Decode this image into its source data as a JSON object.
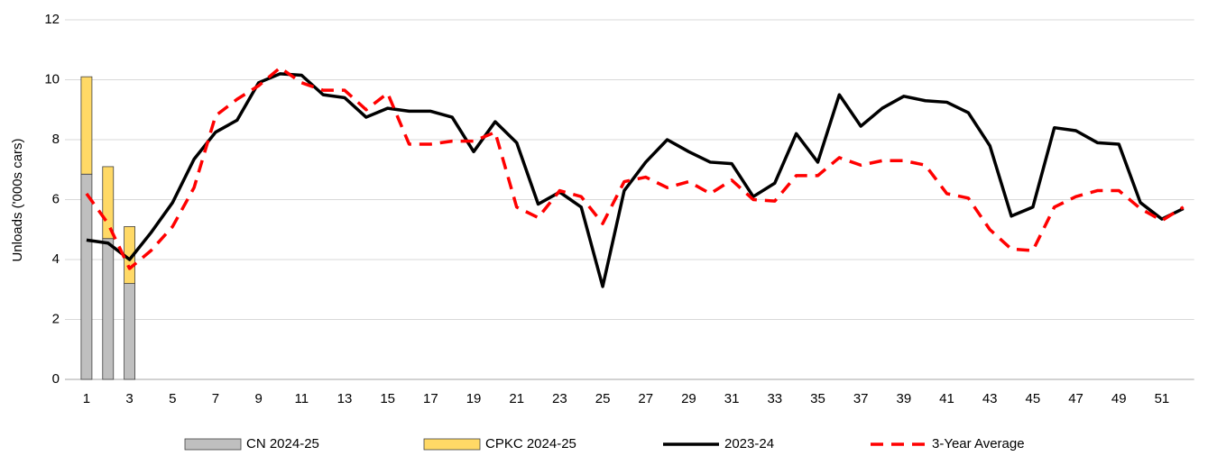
{
  "chart_data": {
    "type": "bar_line",
    "y_label": "Unloads ('000s cars)",
    "categories": [
      1,
      null,
      3,
      null,
      5,
      null,
      7,
      null,
      9,
      null,
      11,
      null,
      13,
      null,
      15,
      null,
      17,
      null,
      19,
      null,
      21,
      null,
      23,
      null,
      25,
      null,
      27,
      null,
      29,
      null,
      31,
      null,
      33,
      null,
      35,
      null,
      37,
      null,
      39,
      null,
      41,
      null,
      43,
      null,
      45,
      null,
      47,
      null,
      49,
      null,
      51,
      null
    ],
    "ylim": [
      0,
      12
    ],
    "yticks": [
      0,
      2,
      4,
      6,
      8,
      10,
      12
    ],
    "grid": true,
    "legend": "bottom",
    "series": [
      {
        "name": "CN 2024-25",
        "kind": "bar",
        "color": "#bfbfbf",
        "values": [
          6.85,
          4.7,
          3.2,
          null,
          null,
          null,
          null,
          null,
          null,
          null,
          null,
          null,
          null,
          null,
          null,
          null,
          null,
          null,
          null,
          null,
          null,
          null,
          null,
          null,
          null,
          null,
          null,
          null,
          null,
          null,
          null,
          null,
          null,
          null,
          null,
          null,
          null,
          null,
          null,
          null,
          null,
          null,
          null,
          null,
          null,
          null,
          null,
          null,
          null,
          null,
          null,
          null
        ]
      },
      {
        "name": "CPKC 2024-25",
        "kind": "bar",
        "color": "#ffd966",
        "values": [
          3.25,
          2.4,
          1.9,
          null,
          null,
          null,
          null,
          null,
          null,
          null,
          null,
          null,
          null,
          null,
          null,
          null,
          null,
          null,
          null,
          null,
          null,
          null,
          null,
          null,
          null,
          null,
          null,
          null,
          null,
          null,
          null,
          null,
          null,
          null,
          null,
          null,
          null,
          null,
          null,
          null,
          null,
          null,
          null,
          null,
          null,
          null,
          null,
          null,
          null,
          null,
          null,
          null
        ]
      },
      {
        "name": "2023-24",
        "kind": "line",
        "style": "solid",
        "color": "#000000",
        "values": [
          4.65,
          4.55,
          4.0,
          4.9,
          5.9,
          7.35,
          8.25,
          8.65,
          9.9,
          10.2,
          10.15,
          9.5,
          9.4,
          8.75,
          9.05,
          8.95,
          8.95,
          8.75,
          7.6,
          8.6,
          7.9,
          5.85,
          6.25,
          5.75,
          3.1,
          6.3,
          7.25,
          8.0,
          7.6,
          7.25,
          7.2,
          6.1,
          6.55,
          8.2,
          7.25,
          9.5,
          8.45,
          9.05,
          9.45,
          9.3,
          9.25,
          8.9,
          7.8,
          5.45,
          5.75,
          8.4,
          8.3,
          7.9,
          7.85,
          5.9,
          5.35,
          5.7
        ]
      },
      {
        "name": "3-Year Average",
        "kind": "line",
        "style": "dashed",
        "color": "#ff0000",
        "values": [
          6.2,
          5.2,
          3.7,
          4.3,
          5.1,
          6.4,
          8.8,
          9.35,
          9.8,
          10.4,
          9.9,
          9.65,
          9.65,
          9.0,
          9.55,
          7.85,
          7.85,
          7.95,
          7.95,
          8.25,
          5.75,
          5.4,
          6.3,
          6.1,
          5.2,
          6.6,
          6.75,
          6.4,
          6.6,
          6.2,
          6.65,
          6.0,
          5.95,
          6.8,
          6.8,
          7.4,
          7.15,
          7.3,
          7.3,
          7.15,
          6.2,
          6.05,
          5.0,
          4.35,
          4.3,
          5.75,
          6.1,
          6.3,
          6.3,
          5.7,
          5.3,
          5.75
        ]
      }
    ]
  }
}
